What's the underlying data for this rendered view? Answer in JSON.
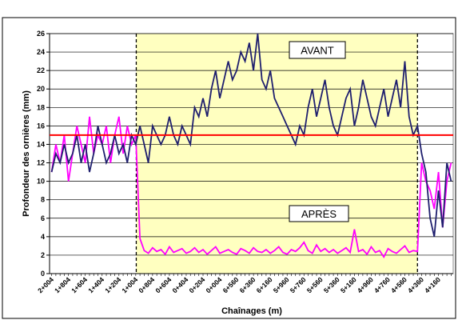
{
  "chart_data": {
    "type": "line",
    "y_label": "Profondeur des ornières (mm)",
    "x_label": "Chaînages (m)",
    "ylim": [
      0,
      26
    ],
    "yticks": [
      0,
      2,
      4,
      6,
      8,
      10,
      12,
      14,
      16,
      18,
      20,
      22,
      24,
      26
    ],
    "grid": true,
    "threshold": 15,
    "threshold_color": "#ff0000",
    "annotations": [
      "AVANT",
      "APRÈS"
    ],
    "categories": [
      "2+004",
      null,
      null,
      null,
      "1+804",
      null,
      null,
      null,
      "1+604",
      null,
      null,
      null,
      "1+404",
      null,
      null,
      null,
      "1+204",
      null,
      null,
      null,
      "1+004",
      null,
      null,
      null,
      "0+804",
      null,
      null,
      null,
      "0+604",
      null,
      null,
      null,
      "0+404",
      null,
      null,
      null,
      "0+204",
      null,
      null,
      null,
      "0+004",
      null,
      null,
      null,
      "6+560",
      null,
      null,
      null,
      "6+360",
      null,
      null,
      null,
      "6+160",
      null,
      null,
      null,
      "5+960",
      null,
      null,
      null,
      "5+760",
      null,
      null,
      null,
      "5+560",
      null,
      null,
      null,
      "5+360",
      null,
      null,
      null,
      "5+160",
      null,
      null,
      null,
      "4+960",
      null,
      null,
      null,
      "4+760",
      null,
      null,
      null,
      "4+560",
      null,
      null,
      null,
      "4+360",
      null,
      null,
      null,
      "4+160",
      null,
      null,
      null
    ],
    "series": [
      {
        "name": "AVANT",
        "color": "#1f1f6e",
        "values": [
          11,
          13,
          12,
          14,
          12,
          13,
          15,
          12,
          14,
          11,
          13,
          16,
          14,
          12,
          13,
          15,
          13,
          14,
          12,
          15,
          14,
          16,
          14,
          12,
          16,
          15,
          14,
          15,
          17,
          15,
          14,
          16,
          15,
          14,
          18,
          17,
          19,
          17,
          20,
          22,
          19,
          21,
          23,
          21,
          22,
          24,
          23,
          25,
          22,
          26,
          21,
          20,
          22,
          19,
          18,
          17,
          16,
          15,
          14,
          16,
          15,
          18,
          20,
          17,
          19,
          21,
          18,
          16,
          15,
          17,
          19,
          20,
          16,
          18,
          21,
          19,
          17,
          16,
          18,
          20,
          17,
          19,
          21,
          18,
          23,
          17,
          15,
          16,
          13,
          11,
          6,
          4,
          9,
          5,
          12,
          10
        ]
      },
      {
        "name": "APRÈS",
        "color": "#ff00ff",
        "values": [
          11,
          14,
          12,
          15,
          10,
          13,
          16,
          14,
          12,
          17,
          13,
          15,
          14,
          16,
          12,
          15,
          17,
          13,
          16,
          14,
          15,
          3.8,
          2.5,
          2.2,
          2.8,
          2.4,
          2.6,
          2.1,
          2.9,
          2.3,
          2.5,
          2.7,
          2.2,
          2.4,
          2.8,
          2.3,
          2.6,
          2.1,
          2.5,
          2.9,
          2.2,
          2.4,
          2.6,
          2.3,
          2.1,
          2.7,
          2.5,
          2.2,
          2.8,
          2.4,
          2.3,
          2.6,
          2.2,
          2.5,
          2.9,
          2.3,
          2.1,
          2.6,
          2.4,
          2.8,
          3.4,
          2.5,
          2.2,
          3.1,
          2.4,
          2.7,
          2.3,
          2.6,
          2.2,
          2.5,
          2.8,
          2.3,
          4.8,
          2.4,
          2.6,
          2.1,
          2.9,
          2.3,
          2.5,
          1.8,
          2.7,
          2.4,
          2.2,
          2.6,
          3.0,
          2.3,
          2.5,
          2.4,
          12,
          10,
          9,
          7,
          11,
          5,
          10,
          12
        ]
      }
    ]
  }
}
